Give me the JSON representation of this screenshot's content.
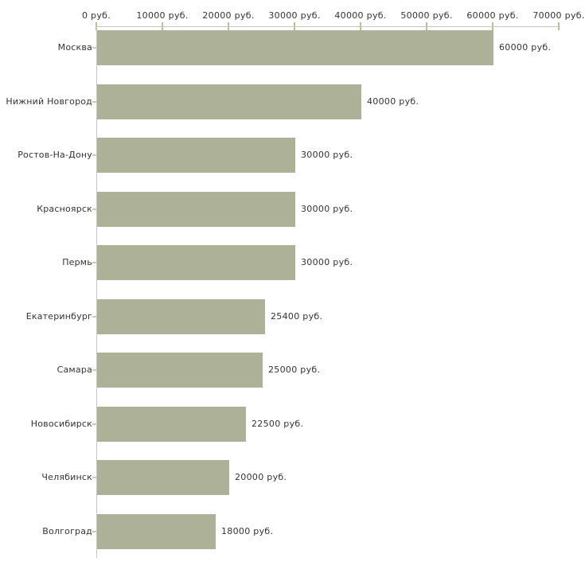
{
  "chart_data": {
    "type": "bar",
    "orientation": "horizontal",
    "title": "",
    "xlabel": "",
    "ylabel": "",
    "categories": [
      "Москва",
      "Нижний Новгород",
      "Ростов-На-Дону",
      "Красноярск",
      "Пермь",
      "Екатеринбург",
      "Самара",
      "Новосибирск",
      "Челябинск",
      "Волгоград"
    ],
    "values": [
      60000,
      40000,
      30000,
      30000,
      30000,
      25400,
      25000,
      22500,
      20000,
      18000
    ],
    "bar_labels": [
      "60000 руб.",
      "40000 руб.",
      "30000 руб.",
      "30000 руб.",
      "30000 руб.",
      "25400 руб.",
      "25000 руб.",
      "22500 руб.",
      "20000 руб.",
      "18000 руб."
    ],
    "x_ticks": [
      0,
      10000,
      20000,
      30000,
      40000,
      50000,
      60000,
      70000
    ],
    "x_tick_labels": [
      "0 руб.",
      "10000 руб.",
      "20000 руб.",
      "30000 руб.",
      "40000 руб.",
      "50000 руб.",
      "60000 руб.",
      "70000 руб."
    ],
    "xlim": [
      0,
      70000
    ],
    "grid": false,
    "legend": null,
    "bar_color": "#adb198",
    "axis_color": "#c6c6c6",
    "tick_color": "#bcbf92",
    "category_tick_color": "#c9ccae",
    "text_color": "#333333"
  }
}
